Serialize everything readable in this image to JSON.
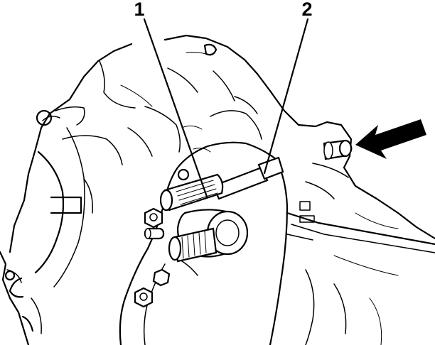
{
  "callouts": [
    {
      "id": "1",
      "label": "1"
    },
    {
      "id": "2",
      "label": "2"
    }
  ],
  "colors": {
    "ink": "#000000",
    "paper": "#ffffff"
  },
  "icons": {
    "pointer": "arrow-icon"
  }
}
